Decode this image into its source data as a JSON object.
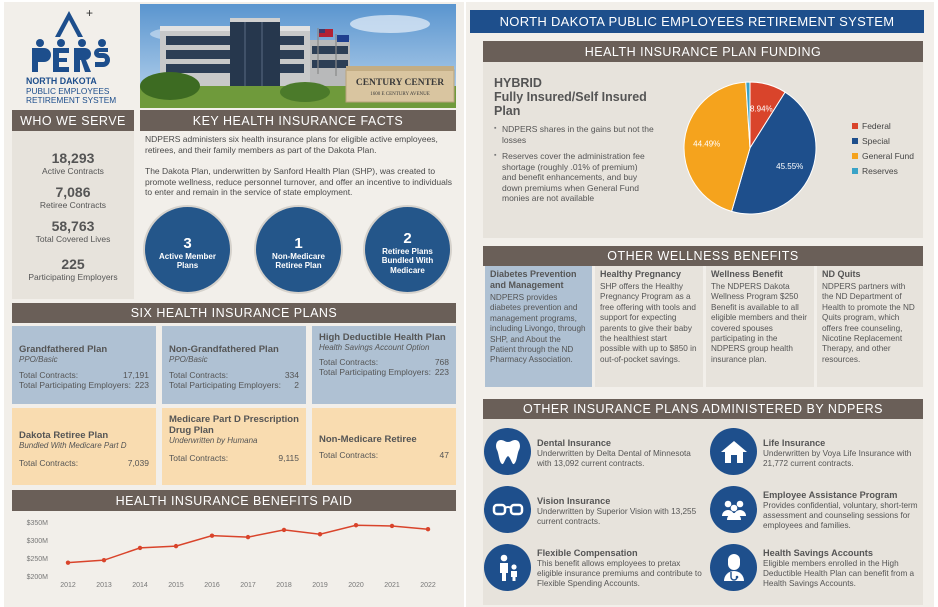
{
  "logo": {
    "letters": "PERS",
    "line1": "NORTH DAKOTA",
    "line2": "PUBLIC EMPLOYEES",
    "line3": "RETIREMENT SYSTEM"
  },
  "photo": {
    "sign_main": "CENTURY CENTER",
    "sign_sub": "1600 E CENTURY AVENUE"
  },
  "who_we_serve": {
    "title": "WHO WE SERVE",
    "stats": [
      {
        "value": "18,293",
        "label": "Active Contracts"
      },
      {
        "value": "7,086",
        "label": "Retiree Contracts"
      },
      {
        "value": "58,763",
        "label": "Total Covered Lives"
      },
      {
        "value": "225",
        "label": "Participating Employers"
      }
    ]
  },
  "key_facts": {
    "title": "KEY HEALTH INSURANCE FACTS",
    "para1": "NDPERS administers six health insurance plans for eligible active employees, retirees, and their family members as part of the Dakota Plan.",
    "para2": "The Dakota Plan, underwritten by Sanford Health Plan (SHP), was created to promote wellness, reduce personnel turnover, and offer an incentive to individuals to enter and remain in the service of state employment.",
    "circles": [
      {
        "number": "3",
        "label": "Active Member Plans"
      },
      {
        "number": "1",
        "label": "Non-Medicare Retiree Plan"
      },
      {
        "number": "2",
        "label": "Retiree Plans Bundled With Medicare"
      }
    ]
  },
  "six_plans": {
    "title": "SIX HEALTH INSURANCE PLANS",
    "plans": [
      {
        "name": "Grandfathered Plan",
        "sub": "PPO/Basic",
        "rows": [
          {
            "k": "Total Contracts:",
            "v": "17,191"
          },
          {
            "k": "Total Participating Employers:",
            "v": "223"
          }
        ]
      },
      {
        "name": "Non-Grandfathered Plan",
        "sub": "PPO/Basic",
        "rows": [
          {
            "k": "Total Contracts:",
            "v": "334"
          },
          {
            "k": "Total Participating Employers:",
            "v": "2"
          }
        ]
      },
      {
        "name": "High Deductible Health Plan",
        "sub": "Health Savings Account Option",
        "rows": [
          {
            "k": "Total Contracts:",
            "v": "768"
          },
          {
            "k": "Total Participating Employers:",
            "v": "223"
          }
        ]
      },
      {
        "name": "Dakota Retiree Plan",
        "sub": "Bundled With Medicare Part D",
        "rows": [
          {
            "k": "Total Contracts:",
            "v": "7,039"
          }
        ]
      },
      {
        "name": "Medicare Part D Prescription Drug Plan",
        "sub": "Underwritten by Humana",
        "rows": [
          {
            "k": "Total Contracts:",
            "v": "9,115"
          }
        ]
      },
      {
        "name": "Non-Medicare Retiree",
        "sub": "",
        "rows": [
          {
            "k": "Total Contracts:",
            "v": "47"
          }
        ]
      }
    ]
  },
  "benefits_paid": {
    "title": "HEALTH INSURANCE BENEFITS PAID"
  },
  "chart_data": {
    "type": "line",
    "x": [
      "2012",
      "2013",
      "2014",
      "2015",
      "2016",
      "2017",
      "2018",
      "2019",
      "2020",
      "2021",
      "2022"
    ],
    "series": [
      {
        "values": [
          237,
          244,
          278,
          283,
          312,
          308,
          328,
          316,
          341,
          339,
          330
        ]
      }
    ],
    "y_ticks": [
      "$200M",
      "$250M",
      "$300M",
      "$350M"
    ],
    "ylim": [
      200,
      350
    ],
    "color": "#d9442b"
  },
  "header": {
    "title": "NORTH DAKOTA PUBLIC EMPLOYEES RETIREMENT SYSTEM"
  },
  "funding": {
    "title": "HEALTH INSURANCE PLAN FUNDING",
    "hybrid_line1": "HYBRID",
    "hybrid_line2": "Fully Insured/Self Insured Plan",
    "bullets": [
      "NDPERS shares in the gains but not the losses",
      "Reserves cover the administration fee shortage (roughly .01% of premium) and benefit enhancements, and buy down premiums when General Fund monies are not available"
    ]
  },
  "pie_data": {
    "type": "pie",
    "slices": [
      {
        "label": "Federal",
        "value": 8.94,
        "pct": "8.94%",
        "color": "#d9442b"
      },
      {
        "label": "Special",
        "value": 45.55,
        "pct": "45.55%",
        "color": "#1e4f8c"
      },
      {
        "label": "General Fund",
        "value": 44.49,
        "pct": "44.49%",
        "color": "#f5a31d"
      },
      {
        "label": "Reserves",
        "value": 1.02,
        "pct": "",
        "color": "#3aa3c7"
      }
    ]
  },
  "wellness": {
    "title": "OTHER WELLNESS BENEFITS",
    "items": [
      {
        "title": "Diabetes Prevention and Management",
        "text": "NDPERS provides diabetes prevention and management programs, including Livongo, through SHP, and About the Patient through the ND Pharmacy Association."
      },
      {
        "title": "Healthy Pregnancy",
        "text": "SHP offers the Healthy Pregnancy Program as a free offering with tools and support for expecting parents to give their baby the healthiest start possible with up to $850 in out-of-pocket savings."
      },
      {
        "title": "Wellness Benefit",
        "text": "The NDPERS Dakota Wellness Program $250 Benefit is available to all eligible members and their covered spouses participating in the NDPERS group health insurance plan."
      },
      {
        "title": "ND Quits",
        "text": "NDPERS partners with the ND Department of Health to promote the ND Quits program, which offers free counseling, Nicotine Replacement Therapy, and other resources."
      }
    ]
  },
  "other_plans": {
    "title": "OTHER INSURANCE PLANS ADMINISTERED BY NDPERS",
    "items": [
      {
        "title": "Dental Insurance",
        "text": "Underwritten by Delta Dental of Minnesota with 13,092 current contracts.",
        "icon": "tooth-icon"
      },
      {
        "title": "Life Insurance",
        "text": "Underwritten by Voya Life Insurance with 21,772 current contracts.",
        "icon": "house-icon"
      },
      {
        "title": "Vision Insurance",
        "text": "Underwritten by Superior Vision with 13,255 current contracts.",
        "icon": "glasses-icon"
      },
      {
        "title": "Employee Assistance Program",
        "text": "Provides confidential, voluntary, short-term assessment and counseling sessions for employees and families.",
        "icon": "people-icon"
      },
      {
        "title": "Flexible Compensation",
        "text": "This benefit allows employees to pretax eligible insurance premiums and contribute to Flexible Spending Accounts.",
        "icon": "family-icon"
      },
      {
        "title": "Health Savings Accounts",
        "text": "Eligible members enrolled in the High Deductible Health Plan can benefit from a Health Savings Accounts.",
        "icon": "doctor-icon"
      }
    ]
  }
}
